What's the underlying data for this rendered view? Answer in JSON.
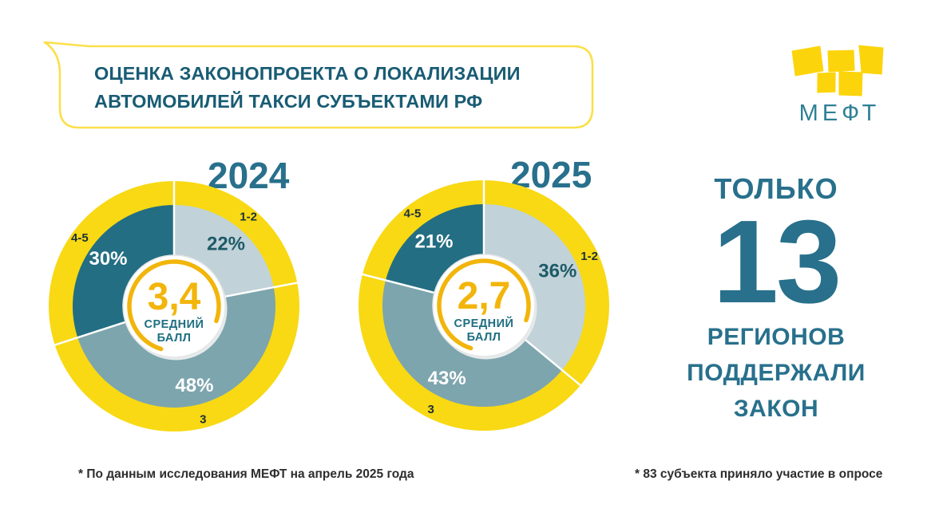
{
  "header": {
    "title_line1": "ОЦЕНКА ЗАКОНОПРОЕКТА О ЛОКАЛИЗАЦИИ",
    "title_line2": "АВТОМОБИЛЕЙ ТАКСИ СУБЪЕКТАМИ РФ",
    "logo_text": "МЕФТ"
  },
  "chart_data": [
    {
      "type": "pie",
      "subtype": "donut",
      "title": "2024",
      "categories": [
        "1-2",
        "3",
        "4-5"
      ],
      "values": [
        22,
        48,
        30
      ],
      "unit": "%",
      "center_value": "3,4",
      "center_label_line1": "СРЕДНИЙ",
      "center_label_line2": "БАЛЛ",
      "legend_position": "on-slice",
      "start_angle_deg": 0,
      "direction": "clockwise"
    },
    {
      "type": "pie",
      "subtype": "donut",
      "title": "2025",
      "categories": [
        "1-2",
        "3",
        "4-5"
      ],
      "values": [
        36,
        43,
        21
      ],
      "unit": "%",
      "center_value": "2,7",
      "center_label_line1": "СРЕДНИЙ",
      "center_label_line2": "БАЛЛ",
      "legend_position": "on-slice",
      "start_angle_deg": 0,
      "direction": "clockwise"
    }
  ],
  "highlight": {
    "kicker": "ТОЛЬКО",
    "number": "13",
    "lines": [
      "РЕГИОНОВ",
      "ПОДДЕРЖАЛИ",
      "ЗАКОН"
    ]
  },
  "footnotes": {
    "left": "* По данным исследования МЕФТ на апрель 2025 года",
    "right": "* 83 субъекта приняло участие в опросе"
  },
  "colors": {
    "ring_yellow": "#F8D914",
    "bubble_border": "#FBE04A",
    "logo_yellow": "#FCD40B",
    "slice_colors": [
      "#C1D2D8",
      "#7DA5AE",
      "#236E83"
    ],
    "pct_label_colors": [
      "#1E5A68",
      "#FFFFFF",
      "#FFFFFF"
    ],
    "outer_label_color": "#1E3038",
    "amber": "#F2B50B",
    "center_label_teal": "#1E6F80",
    "title_teal": "#195C74",
    "year_teal": "#28708C",
    "separator_white": "#FFFFFF"
  }
}
